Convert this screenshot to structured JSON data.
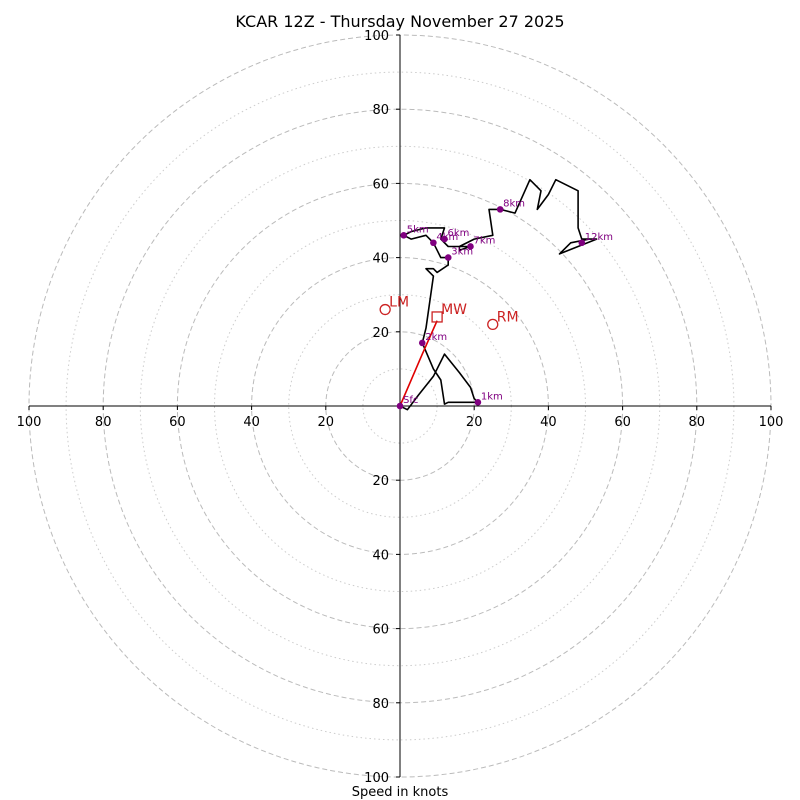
{
  "chart_data": {
    "type": "hodograph",
    "title": "KCAR 12Z - Thursday November 27 2025",
    "xlabel": "Speed in knots",
    "rmax": 100,
    "rings_dashed": [
      20,
      40,
      60,
      80,
      100
    ],
    "rings_dotted": [
      10,
      30,
      50,
      70,
      90
    ],
    "tick_labels": [
      "20",
      "40",
      "60",
      "80",
      "100"
    ],
    "hodograph_trace": [
      [
        0,
        0
      ],
      [
        2,
        -1
      ],
      [
        5,
        3
      ],
      [
        9,
        8
      ],
      [
        12,
        14
      ],
      [
        16,
        9
      ],
      [
        19,
        5
      ],
      [
        20,
        2
      ],
      [
        21,
        1
      ],
      [
        13,
        1
      ],
      [
        12,
        0.5
      ],
      [
        11,
        7
      ],
      [
        9,
        10
      ],
      [
        6,
        17
      ],
      [
        7,
        21
      ],
      [
        8,
        28
      ],
      [
        9,
        35
      ],
      [
        7,
        37
      ],
      [
        9,
        37
      ],
      [
        10,
        36
      ],
      [
        13,
        38
      ],
      [
        13,
        40
      ],
      [
        11,
        40
      ],
      [
        10,
        42
      ],
      [
        9,
        44
      ],
      [
        7,
        46
      ],
      [
        3,
        45
      ],
      [
        1,
        46
      ],
      [
        3,
        47
      ],
      [
        7,
        48
      ],
      [
        12,
        48
      ],
      [
        11,
        45
      ],
      [
        13,
        43
      ],
      [
        16,
        43
      ],
      [
        19,
        43
      ],
      [
        16,
        42
      ],
      [
        16,
        43
      ],
      [
        20,
        45
      ],
      [
        25,
        46
      ],
      [
        24,
        53
      ],
      [
        27,
        53
      ],
      [
        31,
        52
      ],
      [
        35,
        61
      ],
      [
        38,
        58
      ],
      [
        37,
        53
      ],
      [
        40,
        57
      ],
      [
        42,
        61
      ],
      [
        48,
        58
      ],
      [
        48,
        48
      ],
      [
        49,
        45
      ],
      [
        53,
        45
      ],
      [
        43,
        41
      ],
      [
        46,
        44
      ],
      [
        51,
        45
      ]
    ],
    "height_markers": [
      {
        "label": "Sfc",
        "u": 0,
        "v": 0
      },
      {
        "label": "1km",
        "u": 21,
        "v": 1
      },
      {
        "label": "2km",
        "u": 6,
        "v": 17
      },
      {
        "label": "3km",
        "u": 13,
        "v": 40
      },
      {
        "label": "4km",
        "u": 9,
        "v": 44
      },
      {
        "label": "5km",
        "u": 1,
        "v": 46
      },
      {
        "label": "6km",
        "u": 12,
        "v": 45
      },
      {
        "label": "7km",
        "u": 19,
        "v": 43
      },
      {
        "label": "8km",
        "u": 27,
        "v": 53
      },
      {
        "label": "12km",
        "u": 49,
        "v": 44
      }
    ],
    "mean_wind_vector": [
      [
        0,
        0
      ],
      [
        6,
        14
      ],
      [
        10,
        23
      ]
    ],
    "storm_motion": [
      {
        "label": "LM",
        "u": -4,
        "v": 26,
        "shape": "circle"
      },
      {
        "label": "MW",
        "u": 10,
        "v": 24,
        "shape": "square"
      },
      {
        "label": "RM",
        "u": 25,
        "v": 22,
        "shape": "circle"
      }
    ],
    "colors": {
      "trace": "#000000",
      "marker": "#800080",
      "vector": "#e00000",
      "storm": "#cc2222",
      "ring": "#bbbbbb",
      "ring_dotted": "#cccccc",
      "axis": "#000000"
    }
  }
}
